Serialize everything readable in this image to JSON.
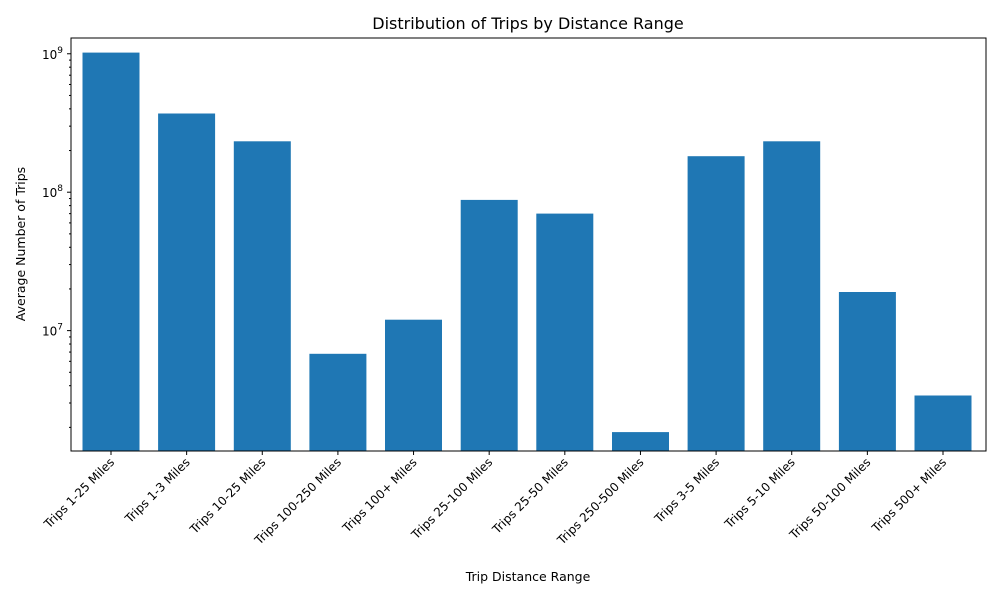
{
  "chart_data": {
    "type": "bar",
    "title": "Distribution of Trips by Distance Range",
    "xlabel": "Trip Distance Range",
    "ylabel": "Average Number of Trips",
    "yscale": "log",
    "ylim": [
      1350000,
      1300000000
    ],
    "yticks": [
      {
        "value": 10000000,
        "base": "10",
        "exp": "7"
      },
      {
        "value": 100000000,
        "base": "10",
        "exp": "8"
      },
      {
        "value": 1000000000,
        "base": "10",
        "exp": "9"
      }
    ],
    "grid": false,
    "color": "#1f77b4",
    "categories": [
      "Trips 1-25 Miles",
      "Trips 1-3 Miles",
      "Trips 10-25 Miles",
      "Trips 100-250 Miles",
      "Trips 100+ Miles",
      "Trips 25-100 Miles",
      "Trips 25-50 Miles",
      "Trips 250-500 Miles",
      "Trips 3-5 Miles",
      "Trips 5-10 Miles",
      "Trips 50-100 Miles",
      "Trips 500+ Miles"
    ],
    "values": [
      1020000000,
      370000000,
      233000000,
      6800000,
      12000000,
      88000000,
      70000000,
      1850000,
      182000000,
      233000000,
      19000000,
      3400000
    ]
  }
}
